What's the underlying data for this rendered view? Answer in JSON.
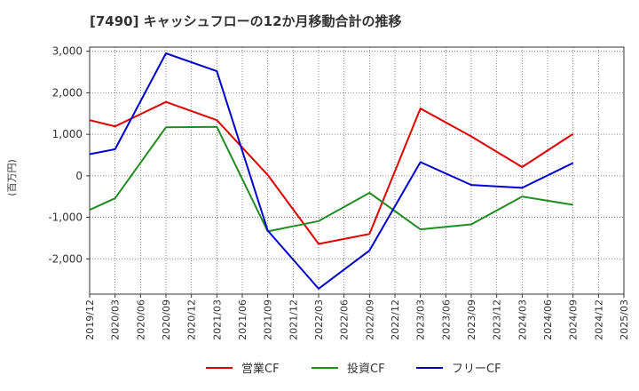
{
  "chart_data": {
    "type": "line",
    "title": "[7490]  キャッシュフローの12か月移動合計の推移",
    "ylabel": "(百万円)",
    "xlabel": "",
    "ylim": [
      -2850,
      3100
    ],
    "yticks": [
      3000,
      2000,
      1000,
      0,
      -1000,
      -2000
    ],
    "ytick_labels": [
      "3,000",
      "2,000",
      "1,000",
      "0",
      "-1,000",
      "-2,000"
    ],
    "categories": [
      "2019/12",
      "2020/03",
      "2020/06",
      "2020/09",
      "2020/12",
      "2021/03",
      "2021/06",
      "2021/09",
      "2021/12",
      "2022/03",
      "2022/06",
      "2022/09",
      "2022/12",
      "2023/03",
      "2023/06",
      "2023/09",
      "2023/12",
      "2024/03",
      "2024/06",
      "2024/09",
      "2024/12",
      "2025/03"
    ],
    "grid": true,
    "legend_position": "bottom",
    "series": [
      {
        "name": "営業CF",
        "color": "#dd0000",
        "values": [
          1340,
          1190,
          null,
          1780,
          null,
          1340,
          null,
          20,
          null,
          -1640,
          null,
          -1400,
          null,
          1620,
          null,
          950,
          null,
          210,
          null,
          1010,
          null,
          null
        ]
      },
      {
        "name": "投資CF",
        "color": "#228b22",
        "values": [
          -820,
          -540,
          null,
          1170,
          null,
          1180,
          null,
          -1340,
          null,
          -1090,
          null,
          -410,
          null,
          -1290,
          null,
          -1170,
          null,
          -500,
          null,
          -700,
          null,
          null
        ]
      },
      {
        "name": "フリーCF",
        "color": "#0000cc",
        "values": [
          520,
          640,
          null,
          2950,
          null,
          2520,
          null,
          -1320,
          null,
          -2720,
          null,
          -1800,
          null,
          330,
          null,
          -220,
          null,
          -290,
          null,
          310,
          null,
          null
        ]
      }
    ]
  }
}
